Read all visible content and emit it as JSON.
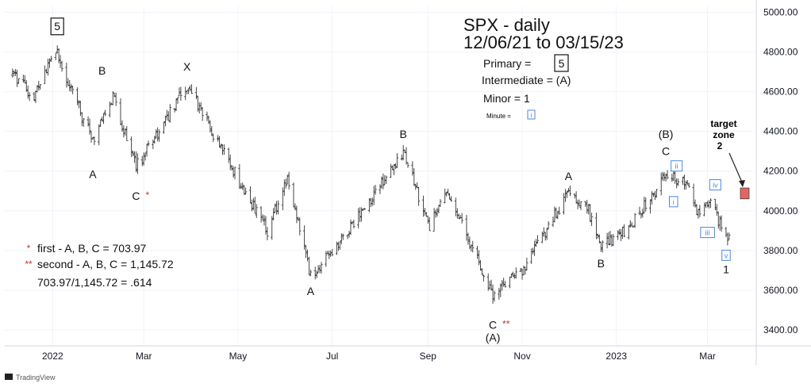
{
  "chart_data": {
    "type": "ohlc-bar",
    "title": "SPX - daily",
    "subtitle": "12/06/21 to 03/15/23",
    "x_labels": [
      "2022",
      "Mar",
      "May",
      "Jul",
      "Sep",
      "Nov",
      "2023",
      "Mar"
    ],
    "y_ticks": [
      "3400.00",
      "3600.00",
      "3800.00",
      "4000.00",
      "4200.00",
      "4400.00",
      "4600.00",
      "4800.00",
      "5000.00"
    ],
    "ylim": [
      3320,
      5030
    ],
    "grid": true,
    "close_series": {
      "dates": [
        "2021-12-06",
        "2021-12-20",
        "2022-01-03",
        "2022-01-27",
        "2022-02-09",
        "2022-02-24",
        "2022-03-29",
        "2022-05-02",
        "2022-05-20",
        "2022-06-02",
        "2022-06-17",
        "2022-07-05",
        "2022-08-16",
        "2022-09-02",
        "2022-09-12",
        "2022-10-13",
        "2022-11-03",
        "2022-11-30",
        "2022-12-13",
        "2022-12-22",
        "2023-01-10",
        "2023-02-02",
        "2023-02-15",
        "2023-02-24",
        "2023-03-03",
        "2023-03-13",
        "2023-03-15"
      ],
      "values": [
        4690,
        4570,
        4800,
        4350,
        4580,
        4220,
        4630,
        4150,
        3900,
        4170,
        3670,
        3830,
        4300,
        3920,
        4110,
        3580,
        3720,
        4080,
        4020,
        3820,
        3920,
        4180,
        4140,
        3970,
        4050,
        3860,
        3890
      ]
    },
    "wave_labels": [
      {
        "text": "5",
        "boxed": true,
        "date": "2022-01-04",
        "price": 4915
      },
      {
        "text": "A",
        "date": "2022-01-27",
        "price": 4170
      },
      {
        "text": "B",
        "date": "2022-02-02",
        "price": 4690
      },
      {
        "text": "C",
        "star": "*",
        "date": "2022-02-24",
        "price": 4060
      },
      {
        "text": "X",
        "date": "2022-03-29",
        "price": 4710
      },
      {
        "text": "A",
        "date": "2022-06-17",
        "price": 3580
      },
      {
        "text": "B",
        "date": "2022-08-16",
        "price": 4370
      },
      {
        "text": "C",
        "star": "**",
        "date": "2022-10-13",
        "price": 3410
      },
      {
        "text": "(A)",
        "date": "2022-10-13",
        "price": 3345
      },
      {
        "text": "A",
        "date": "2022-12-01",
        "price": 4160
      },
      {
        "text": "B",
        "date": "2022-12-22",
        "price": 3720
      },
      {
        "text": "(B)",
        "date": "2023-02-02",
        "price": 4370
      },
      {
        "text": "C",
        "date": "2023-02-02",
        "price": 4285
      },
      {
        "text": "1",
        "date": "2023-03-13",
        "price": 3690
      }
    ],
    "minute_labels": [
      {
        "text": "ii",
        "date": "2023-02-09",
        "price": 4220
      },
      {
        "text": "i",
        "date": "2023-02-07",
        "price": 4040
      },
      {
        "text": "iv",
        "date": "2023-03-06",
        "price": 4125
      },
      {
        "text": "iii",
        "date": "2023-03-01",
        "price": 3885
      },
      {
        "text": "v",
        "date": "2023-03-13",
        "price": 3770
      }
    ],
    "target_zone": {
      "label_line1": "target",
      "label_line2": "zone",
      "label_line3": "2",
      "price_low": 4060,
      "price_high": 4115,
      "color": "#e06666"
    },
    "legend": {
      "primary_label": "Primary  =",
      "primary_value": "5",
      "intermediate": "Intermediate  = (A)",
      "minor": "Minor = 1",
      "minute_label": "Minute  =",
      "minute_value": "i"
    },
    "notes": [
      {
        "stars": "*",
        "text": "first - A, B, C = 703.97"
      },
      {
        "stars": "**",
        "text": "second - A, B, C = 1,145.72"
      },
      {
        "stars": "",
        "text": "703.97/1,145.72 = .614"
      }
    ],
    "colors": {
      "bars": "#333333",
      "star": "#c0392b",
      "minute_box": "#4a86e8",
      "grid": "#f0f3fa"
    },
    "brand": "TradingView"
  }
}
